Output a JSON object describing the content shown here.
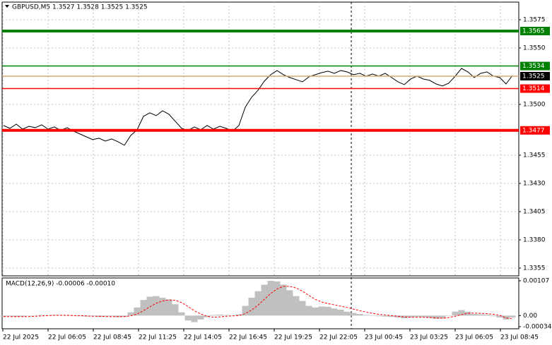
{
  "chart_data": [
    {
      "type": "line",
      "title": "GBPUSD,M5  1.3527 1.3528 1.3525 1.3525",
      "color": "#000000",
      "grid": true,
      "ylim": [
        1.33481,
        1.35906
      ],
      "yticks": [
        1.3575,
        {
          "value": 1.355,
          "label": "1.3550"
        },
        {
          "value": 1.35,
          "label": "1.3500"
        },
        1.3455,
        {
          "value": 1.343,
          "label": "1.3430"
        },
        1.3405,
        {
          "value": 1.338,
          "label": "1.3380"
        },
        1.3355
      ],
      "x_labels": [
        "22 Jul 2025",
        "22 Jul 06:05",
        "22 Jul 08:45",
        "22 Jul 11:25",
        "22 Jul 14:05",
        "22 Jul 16:45",
        "22 Jul 19:25",
        "22 Jul 22:05",
        "23 Jul 00:45",
        "23 Jul 03:25",
        "23 Jul 06:05",
        "23 Jul 08:45"
      ],
      "levels": [
        {
          "value": 1.3565,
          "color": "#008000",
          "text_color": "#ffffff",
          "thick": true
        },
        {
          "value": 1.3534,
          "color": "#008000",
          "text_color": "#ffffff",
          "thick": false
        },
        {
          "value": 1.3525,
          "color": "#d8a878",
          "box": "#000000",
          "text_color": "#ffffff",
          "thick": false
        },
        {
          "value": 1.3514,
          "color": "#ff0000",
          "text_color": "#ffffff",
          "thick": false
        },
        {
          "value": 1.3477,
          "color": "#ff0000",
          "text_color": "#ffffff",
          "thick": true
        }
      ],
      "values": [
        1.34813,
        1.34788,
        1.34825,
        1.34781,
        1.34806,
        1.34794,
        1.34819,
        1.34781,
        1.348,
        1.34769,
        1.34794,
        1.34763,
        1.34738,
        1.34713,
        1.34688,
        1.347,
        1.34675,
        1.34694,
        1.34669,
        1.34638,
        1.34725,
        1.34775,
        1.34894,
        1.34925,
        1.349,
        1.34944,
        1.34913,
        1.3485,
        1.34788,
        1.34769,
        1.348,
        1.34775,
        1.34813,
        1.34781,
        1.34806,
        1.34788,
        1.34763,
        1.34813,
        1.34975,
        1.35063,
        1.35125,
        1.35206,
        1.35263,
        1.353,
        1.35263,
        1.35238,
        1.35219,
        1.352,
        1.35244,
        1.35263,
        1.35281,
        1.35294,
        1.35275,
        1.353,
        1.35288,
        1.35263,
        1.35275,
        1.3525,
        1.35269,
        1.3525,
        1.35275,
        1.35238,
        1.352,
        1.35175,
        1.35225,
        1.3525,
        1.35225,
        1.35213,
        1.35181,
        1.35163,
        1.35188,
        1.3525,
        1.35319,
        1.35288,
        1.35238,
        1.35275,
        1.35288,
        1.3525,
        1.35238,
        1.35181,
        1.35256
      ]
    },
    {
      "type": "macd",
      "title": "MACD(12,26,9) -0.00006 -0.00010",
      "ylim": [
        -0.00034,
        0.00107
      ],
      "yticks": [
        0.00107,
        {
          "value": 0,
          "label": "0.00"
        },
        -0.00034
      ],
      "series": [
        {
          "color": "#c0c0c0",
          "values": [
            -3e-05,
            -2e-05,
            -4e-05,
            -3e-05,
            -1e-05,
            1e-05,
            2e-05,
            1e-05,
            2e-05,
            1e-05,
            0,
            -1e-05,
            -2e-05,
            -3e-05,
            -2e-05,
            -4e-05,
            -3e-05,
            -2e-05,
            -5e-05,
            -4e-05,
            0.0001,
            0.00025,
            0.00048,
            0.00058,
            0.0006,
            0.00055,
            0.0005,
            0.00035,
            0.0001,
            -0.00015,
            -0.0002,
            -0.00012,
            -5e-05,
            2e-05,
            3e-05,
            2e-05,
            0,
            4e-05,
            0.0003,
            0.00055,
            0.00075,
            0.00095,
            0.00107,
            0.00105,
            0.00095,
            0.00078,
            0.0006,
            0.00045,
            0.0003,
            0.00025,
            0.00028,
            0.00027,
            0.00022,
            0.00018,
            0.00012,
            8e-05,
            5e-05,
            2e-05,
            0,
            -2e-05,
            -3e-05,
            -4e-05,
            -6e-05,
            -8e-05,
            -6e-05,
            -4e-05,
            -5e-05,
            -7e-05,
            -0.0001,
            -9e-05,
            0,
            0.00012,
            0.00017,
            0.00012,
            5e-05,
            4e-05,
            3e-05,
            -2e-05,
            -6e-05,
            -0.00012,
            -6e-05
          ]
        },
        {
          "color": "#ff0000",
          "values": [
            -3e-05,
            -3e-05,
            -3e-05,
            -3e-05,
            -3e-05,
            -2e-05,
            -1e-05,
            0,
            1e-05,
            1e-05,
            1e-05,
            0,
            0,
            -1e-05,
            -2e-05,
            -2e-05,
            -3e-05,
            -3e-05,
            -3e-05,
            -3e-05,
            -1e-05,
            5e-05,
            0.00015,
            0.00027,
            0.00038,
            0.00045,
            0.00048,
            0.00047,
            0.0004,
            0.00028,
            0.00015,
            5e-05,
            -2e-05,
            -5e-05,
            -4e-05,
            -2e-05,
            -1e-05,
            0,
            6e-05,
            0.00017,
            0.00032,
            0.0005,
            0.00068,
            0.00082,
            0.0009,
            0.0009,
            0.00085,
            0.00075,
            0.00062,
            0.0005,
            0.00042,
            0.00037,
            0.00033,
            0.00029,
            0.00025,
            0.0002,
            0.00015,
            0.00011,
            7e-05,
            4e-05,
            2e-05,
            0,
            -2e-05,
            -4e-05,
            -5e-05,
            -5e-05,
            -5e-05,
            -6e-05,
            -7e-05,
            -8e-05,
            -6e-05,
            -2e-05,
            3e-05,
            7e-05,
            8e-05,
            7e-05,
            6e-05,
            4e-05,
            1e-05,
            -7e-05,
            -0.0001
          ]
        }
      ]
    }
  ]
}
